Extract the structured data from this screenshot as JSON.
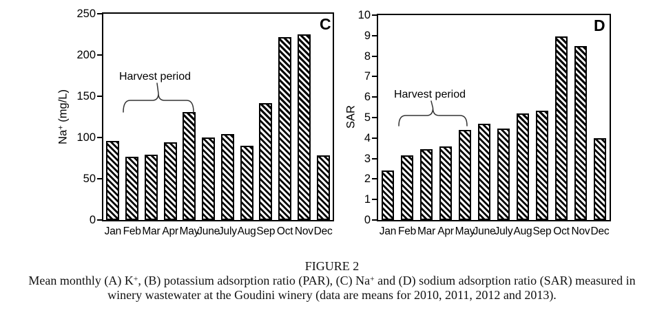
{
  "figure": {
    "caption_title": "FIGURE 2",
    "caption_line1_parts": [
      {
        "t": "Mean monthly (A) K"
      },
      {
        "t": "+",
        "sup": true
      },
      {
        "t": ", (B) potassium adsorption ratio (PAR), (C) Na"
      },
      {
        "t": "+",
        "sup": true
      },
      {
        "t": " and (D) sodium adsorption ratio (SAR) measured in"
      }
    ],
    "caption_line2": "winery wastewater at the Goudini winery (data are means for 2010, 2011, 2012 and 2013)."
  },
  "chart_data": [
    {
      "type": "bar",
      "panel": "C",
      "title": "",
      "ylabel": "Na+ (mg/L)",
      "ylabel_parts": [
        {
          "t": "Na"
        },
        {
          "t": "+",
          "sup": true
        },
        {
          "t": " (mg/L)"
        }
      ],
      "xlabel": "",
      "categories": [
        "Jan",
        "Feb",
        "Mar",
        "Apr",
        "May",
        "June",
        "July",
        "Aug",
        "Sep",
        "Oct",
        "Nov",
        "Dec"
      ],
      "values": [
        96,
        77,
        79,
        94,
        131,
        100,
        104,
        90,
        142,
        222,
        225,
        78
      ],
      "ylim": [
        0,
        250
      ],
      "yticks": [
        0,
        50,
        100,
        150,
        200,
        250
      ],
      "annotation": "Harvest period",
      "annotation_span": [
        "Feb",
        "May"
      ],
      "bar_style": "diagonal-hatch",
      "grid": false,
      "legend": "none"
    },
    {
      "type": "bar",
      "panel": "D",
      "title": "",
      "ylabel": "SAR",
      "ylabel_parts": [
        {
          "t": "SAR"
        }
      ],
      "xlabel": "",
      "categories": [
        "Jan",
        "Feb",
        "Mar",
        "Apr",
        "May",
        "June",
        "July",
        "Aug",
        "Sep",
        "Oct",
        "Nov",
        "Dec"
      ],
      "values": [
        2.4,
        3.15,
        3.45,
        3.6,
        4.4,
        4.7,
        4.45,
        5.2,
        5.35,
        8.95,
        8.5,
        4.0
      ],
      "ylim": [
        0,
        10
      ],
      "yticks": [
        0,
        1,
        2,
        3,
        4,
        5,
        6,
        7,
        8,
        9,
        10
      ],
      "annotation": "Harvest period",
      "annotation_span": [
        "Feb",
        "May"
      ],
      "bar_style": "diagonal-hatch",
      "grid": false,
      "legend": "none"
    }
  ],
  "colors": {
    "ink": "#000000",
    "background": "#ffffff",
    "bar_fill": "#ffffff",
    "bar_hatch": "#000000",
    "brace": "#333333"
  }
}
